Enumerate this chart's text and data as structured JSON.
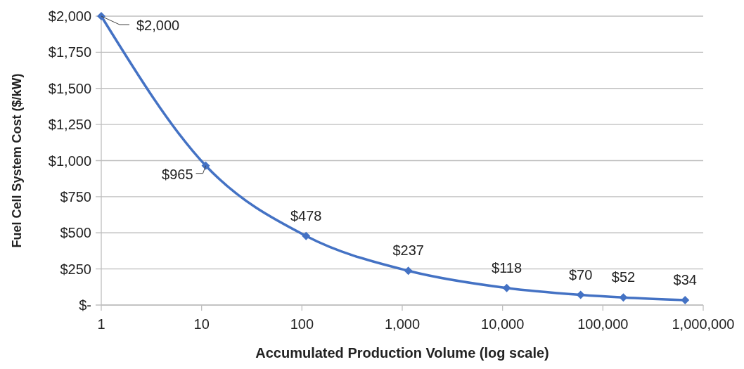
{
  "chart_data": {
    "type": "line",
    "xlabel": "Accumulated Production Volume (log scale)",
    "ylabel": "Fuel Cell System Cost ($/kW)",
    "log": "x",
    "grid": "y",
    "marker": "diamond",
    "line_style": "solid",
    "xlim": [
      1,
      1000000
    ],
    "xticks": [
      1,
      10,
      100,
      {
        "value": 1000,
        "label": "1,000"
      },
      {
        "value": 10000,
        "label": "10,000"
      },
      {
        "value": 100000,
        "label": "100,000"
      },
      {
        "value": 1000000,
        "label": "1,000,000"
      }
    ],
    "ylim": [
      0,
      2000
    ],
    "yticks": [
      {
        "value": 0,
        "label": "$-"
      },
      {
        "value": 250,
        "label": "$250"
      },
      {
        "value": 500,
        "label": "$500"
      },
      {
        "value": 750,
        "label": "$750"
      },
      {
        "value": 1000,
        "label": "$1,000"
      },
      {
        "value": 1250,
        "label": "$1,250"
      },
      {
        "value": 1500,
        "label": "$1,500"
      },
      {
        "value": 1750,
        "label": "$1,750"
      },
      {
        "value": 2000,
        "label": "$2,000"
      }
    ],
    "x": [
      1,
      11,
      110,
      1150,
      11000,
      60000,
      160000,
      660000
    ],
    "series": [
      {
        "color": "#4472c4",
        "values": [
          2000,
          965,
          478,
          237,
          118,
          70,
          52,
          34
        ],
        "value_labels": [
          "$2,000",
          "$965",
          "$478",
          "$237",
          "$118",
          "$70",
          "$52",
          "$34"
        ]
      }
    ]
  }
}
